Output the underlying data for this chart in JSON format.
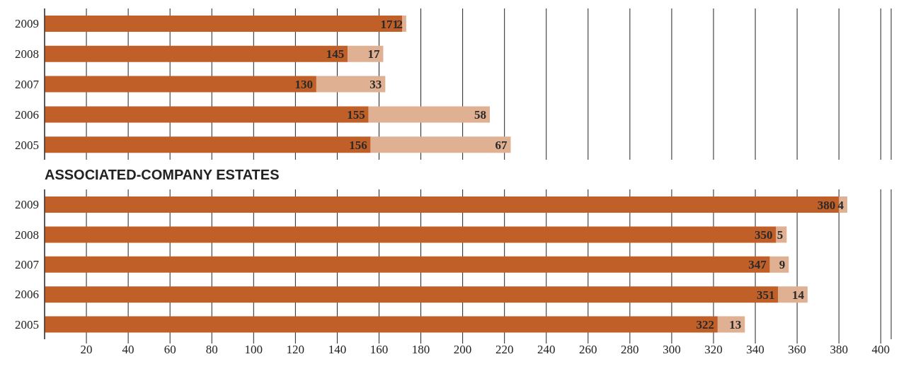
{
  "chart_data": [
    {
      "type": "bar",
      "orientation": "horizontal",
      "stacked": true,
      "categories": [
        "2009",
        "2008",
        "2007",
        "2006",
        "2005"
      ],
      "series": [
        {
          "color": "#c05f27",
          "values": [
            171,
            145,
            130,
            155,
            156
          ]
        },
        {
          "color": "#dfb092",
          "values": [
            2,
            17,
            33,
            58,
            67
          ]
        }
      ],
      "xlim": [
        0,
        405
      ],
      "xticks": [
        20,
        40,
        60,
        80,
        100,
        120,
        140,
        160,
        180,
        200,
        220,
        240,
        260,
        280,
        300,
        320,
        340,
        360,
        380,
        400
      ],
      "grid": "x",
      "data_labels": true,
      "tick_labels": "y"
    },
    {
      "type": "bar",
      "orientation": "horizontal",
      "stacked": true,
      "title": "ASSOCIATED-COMPANY ESTATES",
      "categories": [
        "2009",
        "2008",
        "2007",
        "2006",
        "2005"
      ],
      "series": [
        {
          "color": "#c05f27",
          "values": [
            380,
            350,
            347,
            351,
            322
          ]
        },
        {
          "color": "#dfb092",
          "values": [
            4,
            5,
            9,
            14,
            13
          ]
        }
      ],
      "xlim": [
        0,
        405
      ],
      "xticks": [
        20,
        40,
        60,
        80,
        100,
        120,
        140,
        160,
        180,
        200,
        220,
        240,
        260,
        280,
        300,
        320,
        340,
        360,
        380,
        400
      ],
      "grid": "x",
      "data_labels": true
    }
  ]
}
